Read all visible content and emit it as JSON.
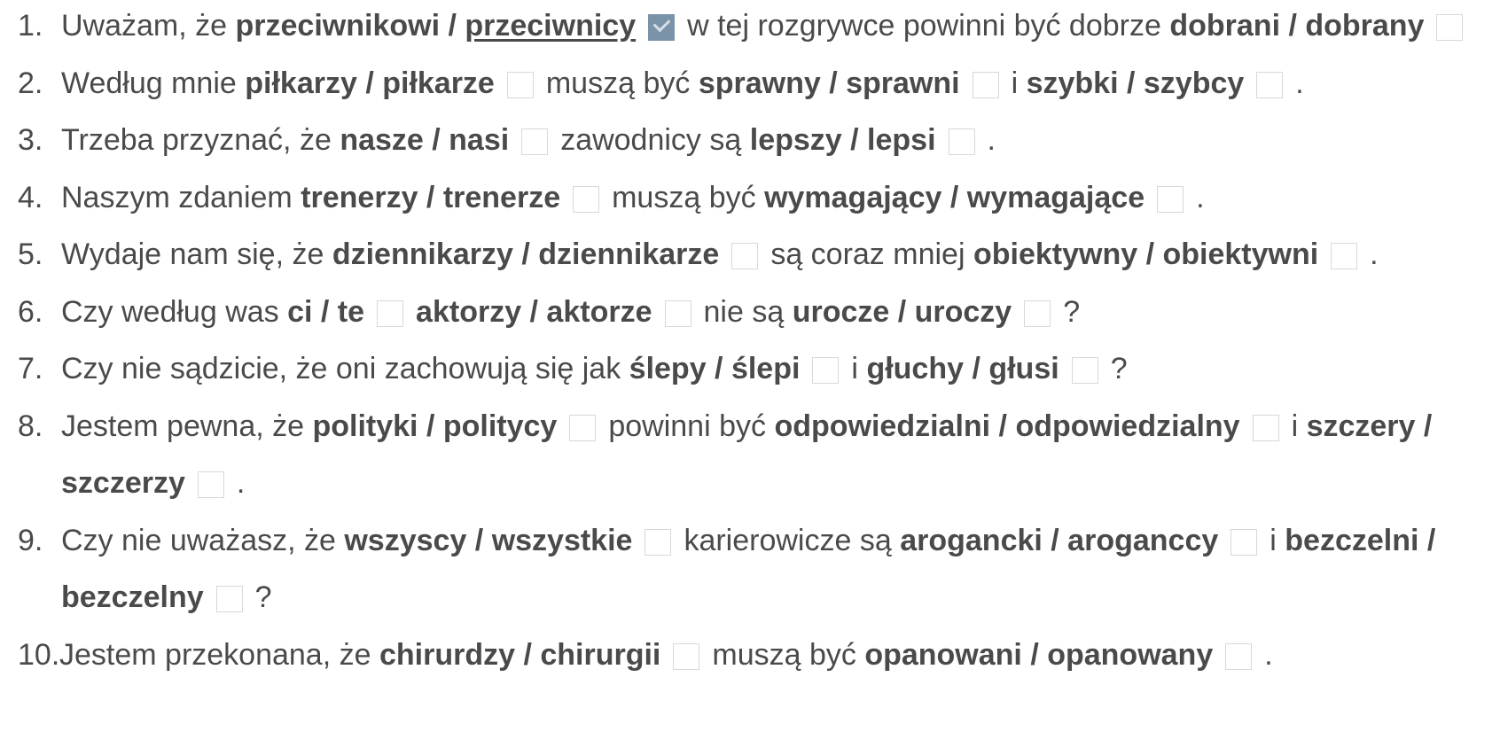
{
  "exercise": {
    "items": [
      {
        "number": "1.",
        "t1": "Uważam, że",
        "c1": "przeciwnikowi /",
        "c1b": "przeciwnicy",
        "t2": "w tej rozgrywce powinni być dobrze",
        "c2": "dobrani / dobrany"
      },
      {
        "number": "2.",
        "t1": "Według mnie",
        "c1": "piłkarzy / piłkarze",
        "t2": "muszą być",
        "c2": "sprawny / sprawni",
        "t3": "i",
        "c3": "szybki / szybcy",
        "end": "."
      },
      {
        "number": "3.",
        "t1": "Trzeba przyznać, że",
        "c1": "nasze / nasi",
        "t2": "zawodnicy są",
        "c2": "lepszy / lepsi",
        "end": "."
      },
      {
        "number": "4.",
        "t1": "Naszym zdaniem",
        "c1": "trenerzy / trenerze",
        "t2": "muszą być",
        "c2": "wymagający / wymagające",
        "end": "."
      },
      {
        "number": "5.",
        "t1": "Wydaje nam się, że",
        "c1": "dziennikarzy / dziennikarze",
        "t2": "są coraz mniej",
        "c2": "obiektywny / obiektywni",
        "end": "."
      },
      {
        "number": "6.",
        "t1": "Czy według was",
        "c1": "ci / te",
        "c2": "aktorzy / aktorze",
        "t3": "nie są",
        "c3": "urocze / uroczy",
        "end": "?"
      },
      {
        "number": "7.",
        "t1": "Czy nie sądzicie, że oni zachowują się jak",
        "c1": "ślepy / ślepi",
        "t2": "i",
        "c2": "głuchy / głusi",
        "end": "?"
      },
      {
        "number": "8.",
        "t1": "Jestem pewna, że",
        "c1": "polityki / politycy",
        "t2": "powinni być",
        "c2": "odpowiedzialni / odpowiedzialny",
        "t3": "i",
        "c3a": "szczery /",
        "c3b": "szczerzy",
        "end": "."
      },
      {
        "number": "9.",
        "t1": "Czy nie uważasz, że",
        "c1": "wszyscy / wszystkie",
        "t2": "karierowicze są",
        "c2": "arogancki / aroganccy",
        "t3": "i",
        "c3a": "bezczelni /",
        "c3b": "bezczelny",
        "end": "?"
      },
      {
        "number": "10.",
        "t1": "Jestem przekonana, że",
        "c1": "chirurdzy / chirurgii",
        "t2": "muszą być",
        "c2": "opanowani / opanowany",
        "end": "."
      }
    ]
  },
  "colors": {
    "text": "#4a4a4a",
    "checkbox_border": "#d8d8d8",
    "checkbox_checked": "#7b93a8"
  }
}
